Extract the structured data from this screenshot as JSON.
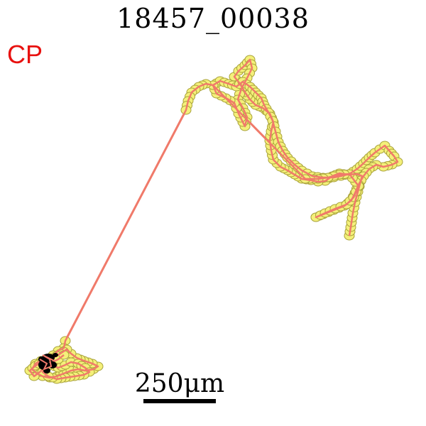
{
  "title": "18457_00038",
  "corner_label": "CP",
  "scale_label": "250μm",
  "colors": {
    "path": "#f07a6a",
    "marker_fill": "#f4f07a",
    "marker_stroke": "#a8a23a",
    "corner_label": "#e8110f",
    "origin_cluster": "#000000"
  }
}
